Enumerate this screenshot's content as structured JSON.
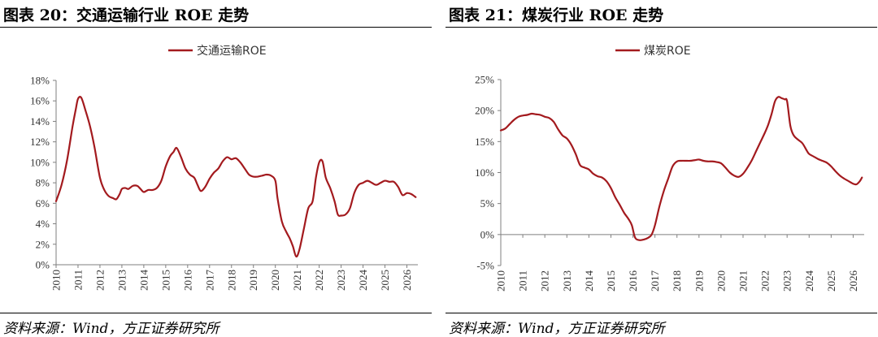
{
  "colors": {
    "line": "#a31a1e",
    "axis": "#7f7f7f",
    "text": "#333333"
  },
  "panels": [
    {
      "title": "图表 20：交通运输行业 ROE 走势",
      "source": "资料来源：Wind，方正证券研究所"
    },
    {
      "title": "图表 21：煤炭行业 ROE 走势",
      "source": "资料来源：Wind，方正证券研究所"
    }
  ],
  "chart_data": [
    {
      "type": "line",
      "title": "",
      "xlabel": "",
      "ylabel": "",
      "legend_position": "top-center",
      "grid": false,
      "xlim": [
        2010,
        2026.5
      ],
      "ylim": [
        0,
        18
      ],
      "y_ticks": [
        "0%",
        "2%",
        "4%",
        "6%",
        "8%",
        "10%",
        "12%",
        "14%",
        "16%",
        "18%"
      ],
      "y_tick_values": [
        0,
        2,
        4,
        6,
        8,
        10,
        12,
        14,
        16,
        18
      ],
      "x_ticks": [
        "2010",
        "2011",
        "2012",
        "2013",
        "2014",
        "2015",
        "2016",
        "2017",
        "2018",
        "2019",
        "2020",
        "2021",
        "2022",
        "2023",
        "2024",
        "2025",
        "2026"
      ],
      "series": [
        {
          "name": "交通运输ROE",
          "x": [
            2010.0,
            2010.25,
            2010.5,
            2010.75,
            2010.9,
            2011.0,
            2011.15,
            2011.35,
            2011.55,
            2011.75,
            2012.0,
            2012.2,
            2012.4,
            2012.6,
            2012.75,
            2012.9,
            2013.0,
            2013.15,
            2013.3,
            2013.5,
            2013.7,
            2013.85,
            2014.0,
            2014.2,
            2014.4,
            2014.6,
            2014.8,
            2015.0,
            2015.2,
            2015.35,
            2015.5,
            2015.7,
            2015.9,
            2016.1,
            2016.3,
            2016.45,
            2016.6,
            2016.8,
            2017.0,
            2017.2,
            2017.4,
            2017.6,
            2017.8,
            2018.0,
            2018.2,
            2018.4,
            2018.6,
            2018.8,
            2019.0,
            2019.2,
            2019.4,
            2019.6,
            2019.8,
            2020.0,
            2020.1,
            2020.3,
            2020.5,
            2020.65,
            2020.8,
            2020.95,
            2021.1,
            2021.3,
            2021.5,
            2021.7,
            2021.85,
            2022.0,
            2022.15,
            2022.3,
            2022.5,
            2022.7,
            2022.85,
            2023.0,
            2023.2,
            2023.4,
            2023.6,
            2023.8,
            2024.0,
            2024.2,
            2024.4,
            2024.6,
            2024.8,
            2025.0,
            2025.2,
            2025.4,
            2025.6,
            2025.8,
            2026.0,
            2026.2,
            2026.4
          ],
          "values": [
            6.2,
            7.8,
            10.2,
            13.5,
            15.2,
            16.2,
            16.3,
            15.0,
            13.5,
            11.5,
            8.5,
            7.3,
            6.7,
            6.5,
            6.4,
            6.9,
            7.4,
            7.5,
            7.4,
            7.7,
            7.7,
            7.4,
            7.1,
            7.3,
            7.3,
            7.5,
            8.2,
            9.6,
            10.6,
            11.0,
            11.4,
            10.5,
            9.4,
            8.8,
            8.5,
            7.8,
            7.2,
            7.6,
            8.4,
            9.0,
            9.4,
            10.1,
            10.5,
            10.3,
            10.4,
            10.0,
            9.4,
            8.8,
            8.6,
            8.6,
            8.7,
            8.8,
            8.7,
            8.2,
            6.5,
            4.2,
            3.2,
            2.6,
            1.8,
            0.8,
            1.5,
            3.5,
            5.5,
            6.2,
            8.5,
            10.0,
            10.1,
            8.5,
            7.5,
            6.2,
            4.9,
            4.8,
            4.9,
            5.5,
            7.0,
            7.8,
            8.0,
            8.2,
            8.0,
            7.8,
            8.0,
            8.2,
            8.1,
            8.1,
            7.6,
            6.8,
            7.0,
            6.9,
            6.6
          ]
        }
      ]
    },
    {
      "type": "line",
      "title": "",
      "xlabel": "",
      "ylabel": "",
      "legend_position": "top-center",
      "grid": false,
      "xlim": [
        2010,
        2026.5
      ],
      "ylim": [
        -5,
        25
      ],
      "y_ticks": [
        "-5%",
        "0%",
        "5%",
        "10%",
        "15%",
        "20%",
        "25%"
      ],
      "y_tick_values": [
        -5,
        0,
        5,
        10,
        15,
        20,
        25
      ],
      "x_ticks": [
        "2010",
        "2011",
        "2012",
        "2013",
        "2014",
        "2015",
        "2016",
        "2017",
        "2018",
        "2019",
        "2020",
        "2021",
        "2022",
        "2023",
        "2024",
        "2025",
        "2026"
      ],
      "series": [
        {
          "name": "煤炭ROE",
          "x": [
            2010.0,
            2010.2,
            2010.4,
            2010.6,
            2010.8,
            2011.0,
            2011.2,
            2011.4,
            2011.6,
            2011.8,
            2012.0,
            2012.2,
            2012.4,
            2012.6,
            2012.8,
            2013.0,
            2013.2,
            2013.4,
            2013.6,
            2013.8,
            2014.0,
            2014.2,
            2014.4,
            2014.6,
            2014.8,
            2015.0,
            2015.2,
            2015.4,
            2015.6,
            2015.8,
            2015.95,
            2016.1,
            2016.3,
            2016.5,
            2016.7,
            2016.85,
            2017.0,
            2017.2,
            2017.4,
            2017.6,
            2017.8,
            2018.0,
            2018.2,
            2018.4,
            2018.6,
            2018.8,
            2019.0,
            2019.2,
            2019.4,
            2019.6,
            2019.8,
            2020.0,
            2020.2,
            2020.4,
            2020.6,
            2020.8,
            2021.0,
            2021.2,
            2021.4,
            2021.6,
            2021.8,
            2022.0,
            2022.15,
            2022.3,
            2022.45,
            2022.6,
            2022.75,
            2022.9,
            2023.0,
            2023.15,
            2023.3,
            2023.5,
            2023.7,
            2023.9,
            2024.0,
            2024.2,
            2024.4,
            2024.6,
            2024.8,
            2025.0,
            2025.2,
            2025.4,
            2025.6,
            2025.8,
            2026.0,
            2026.15,
            2026.3,
            2026.4
          ],
          "values": [
            16.8,
            17.1,
            17.8,
            18.5,
            19.0,
            19.2,
            19.3,
            19.5,
            19.4,
            19.3,
            19.0,
            18.8,
            18.2,
            17.0,
            16.0,
            15.5,
            14.5,
            13.0,
            11.2,
            10.8,
            10.5,
            9.8,
            9.4,
            9.2,
            8.6,
            7.5,
            6.0,
            4.8,
            3.5,
            2.5,
            1.5,
            -0.5,
            -0.9,
            -0.8,
            -0.5,
            0.0,
            1.5,
            4.5,
            7.0,
            9.0,
            11.0,
            11.8,
            11.9,
            11.9,
            11.9,
            12.0,
            12.1,
            11.9,
            11.8,
            11.8,
            11.7,
            11.5,
            10.8,
            10.0,
            9.5,
            9.3,
            9.8,
            10.8,
            12.0,
            13.5,
            15.0,
            16.5,
            17.8,
            19.5,
            21.5,
            22.2,
            22.0,
            21.8,
            21.5,
            17.5,
            16.0,
            15.3,
            14.7,
            13.5,
            13.0,
            12.6,
            12.2,
            11.9,
            11.6,
            11.0,
            10.2,
            9.5,
            9.0,
            8.6,
            8.2,
            8.1,
            8.6,
            9.2
          ]
        }
      ]
    }
  ]
}
